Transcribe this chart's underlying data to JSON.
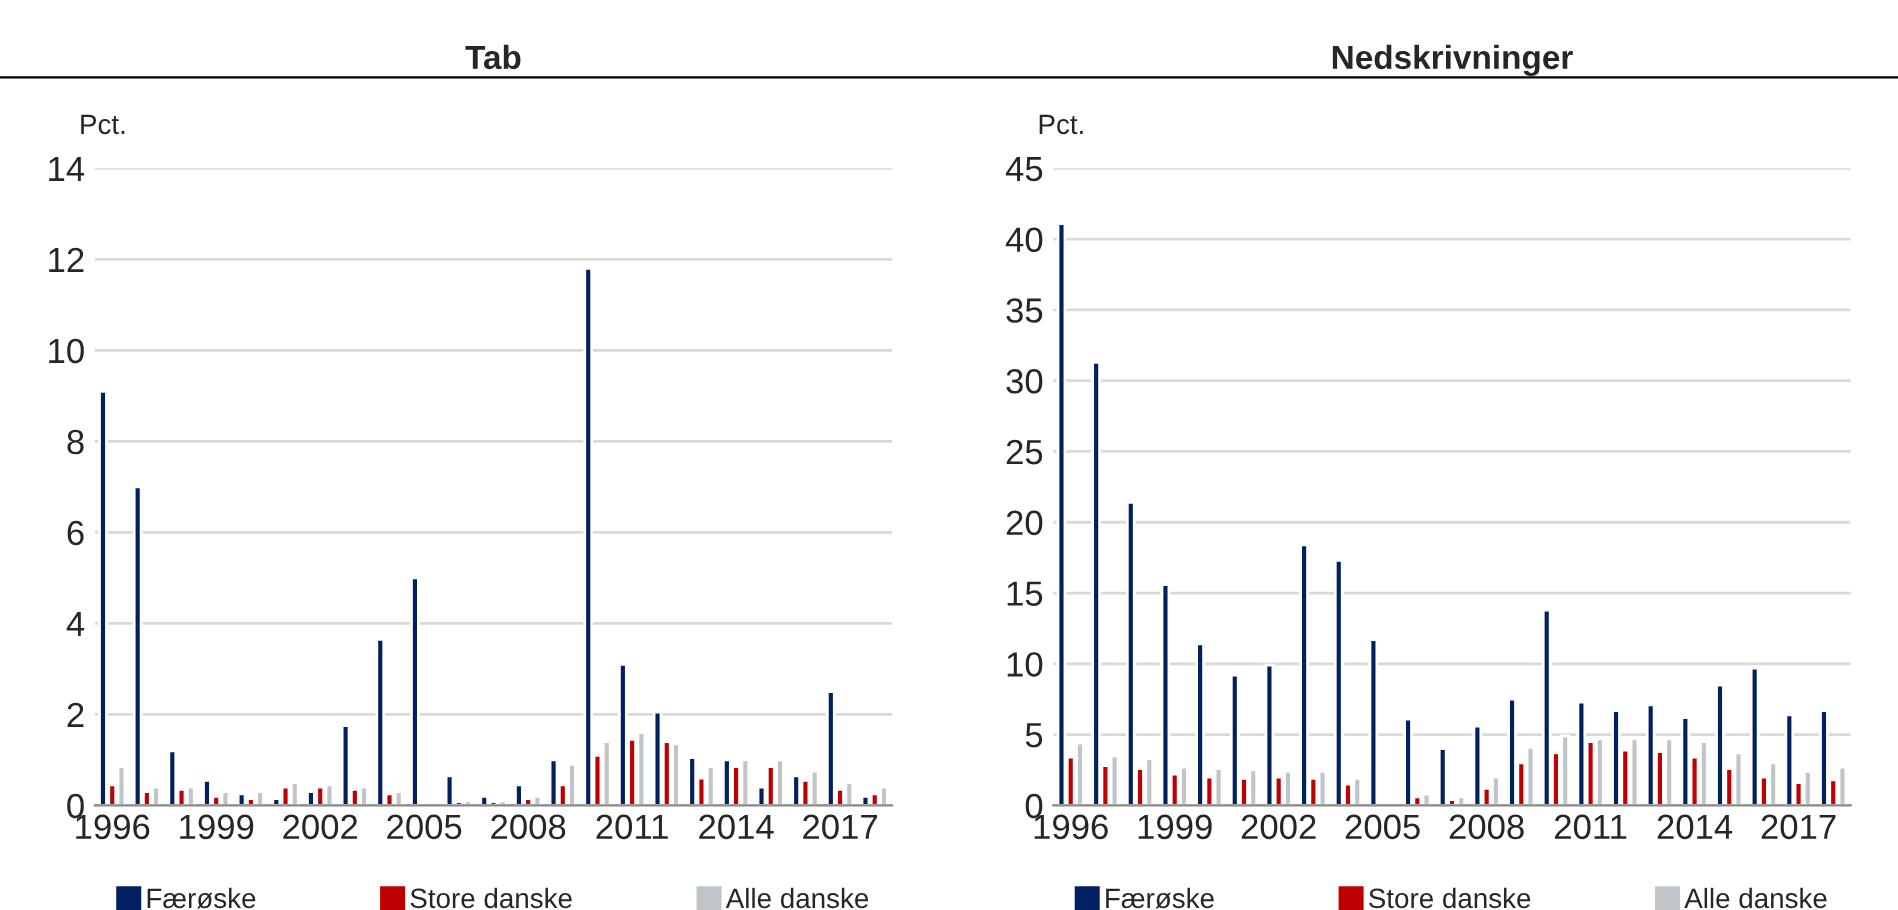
{
  "chart_data": [
    {
      "type": "bar",
      "title": "Tab",
      "ylabel": "Pct.",
      "categories": [
        "1996",
        null,
        null,
        "1999",
        null,
        null,
        "2002",
        null,
        null,
        "2005",
        null,
        null,
        "2008",
        null,
        null,
        "2011",
        null,
        null,
        "2014",
        null,
        null,
        "2017",
        null
      ],
      "series": [
        {
          "name": "Færøske",
          "color": "#002060",
          "values": [
            9.1,
            7.0,
            1.2,
            0.55,
            0.25,
            0.15,
            0.3,
            1.75,
            3.65,
            5.0,
            0.65,
            0.2,
            0.45,
            1.0,
            11.8,
            3.1,
            2.05,
            1.05,
            1.0,
            0.4,
            0.65,
            2.5,
            0.2
          ]
        },
        {
          "name": "Store danske",
          "color": "#c00000",
          "values": [
            0.45,
            0.3,
            0.35,
            0.2,
            0.15,
            0.4,
            0.4,
            0.35,
            0.25,
            null,
            0.08,
            0.08,
            0.15,
            0.45,
            1.1,
            1.45,
            1.4,
            0.6,
            0.85,
            0.85,
            0.55,
            0.35,
            0.25
          ]
        },
        {
          "name": "Alle danske",
          "color": "#bfc5c9",
          "values": [
            0.85,
            0.4,
            0.4,
            0.3,
            0.3,
            0.5,
            0.45,
            0.4,
            0.3,
            null,
            0.1,
            0.1,
            0.2,
            0.9,
            1.4,
            1.6,
            1.35,
            0.85,
            1.0,
            1.0,
            0.75,
            0.5,
            0.4
          ]
        }
      ],
      "ylim": [
        0,
        14
      ],
      "yticks": [
        0,
        2,
        4,
        6,
        8,
        10,
        12,
        14
      ],
      "grid": "y",
      "legend": "bottom"
    },
    {
      "type": "bar",
      "title": "Nedskrivninger",
      "ylabel": "Pct.",
      "categories": [
        "1996",
        null,
        null,
        "1999",
        null,
        null,
        "2002",
        null,
        null,
        "2005",
        null,
        null,
        "2008",
        null,
        null,
        "2011",
        null,
        null,
        "2014",
        null,
        null,
        "2017",
        null
      ],
      "series": [
        {
          "name": "Færøske",
          "color": "#002060",
          "values": [
            41.1,
            31.3,
            21.4,
            15.6,
            11.4,
            9.2,
            9.9,
            18.4,
            17.3,
            11.7,
            6.1,
            4.0,
            5.6,
            7.5,
            13.8,
            7.3,
            6.7,
            7.1,
            6.2,
            8.5,
            9.7,
            6.4,
            6.7
          ]
        },
        {
          "name": "Store danske",
          "color": "#c00000",
          "values": [
            3.4,
            2.8,
            2.6,
            2.2,
            2.0,
            1.9,
            2.0,
            1.9,
            1.5,
            null,
            0.6,
            0.4,
            1.2,
            3.0,
            3.7,
            4.5,
            3.9,
            3.8,
            3.4,
            2.6,
            2.0,
            1.6,
            1.8
          ]
        },
        {
          "name": "Alle danske",
          "color": "#bfc5c9",
          "values": [
            4.4,
            3.5,
            3.3,
            2.7,
            2.6,
            2.5,
            2.4,
            2.4,
            1.9,
            null,
            0.8,
            0.6,
            2.0,
            4.1,
            4.9,
            4.7,
            4.7,
            4.7,
            4.5,
            3.7,
            3.0,
            2.4,
            2.7
          ]
        }
      ],
      "ylim": [
        0,
        45
      ],
      "yticks": [
        0,
        5,
        10,
        15,
        20,
        25,
        30,
        35,
        40,
        45
      ],
      "grid": "y",
      "legend": "bottom"
    }
  ]
}
